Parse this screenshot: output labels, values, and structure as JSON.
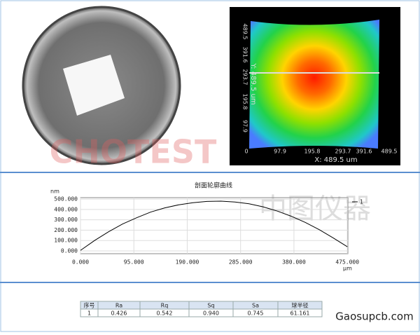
{
  "photo": {
    "watermark": "CHOTEST"
  },
  "heatmap": {
    "x_ticks": [
      "0",
      "97.9",
      "195.8",
      "293.7",
      "391.6",
      "489.5"
    ],
    "y_ticks": [
      "489.5",
      "391.6",
      "293.7",
      "195.8",
      "97.9"
    ],
    "x_label": "X: 489.5 um",
    "y_label": "Y: 489.5 um"
  },
  "chart_data": {
    "type": "line",
    "title": "剖面轮廓曲线",
    "y_label": "nm",
    "x_label": "μm",
    "watermark": "中图仪器",
    "x": [
      0,
      25,
      50,
      75,
      100,
      125,
      150,
      175,
      200,
      225,
      250,
      275,
      300,
      325,
      350,
      375,
      400,
      425,
      450,
      475
    ],
    "series": [
      {
        "name": "1",
        "color": "#000000",
        "values": [
          5,
          100,
          185,
          260,
          320,
          375,
          415,
          445,
          465,
          478,
          480,
          472,
          455,
          425,
          385,
          335,
          275,
          205,
          125,
          40
        ]
      }
    ],
    "xlim": [
      0,
      476
    ],
    "ylim": [
      -27,
      514
    ],
    "xticks": [
      {
        "value": 0,
        "label": "0.000"
      },
      {
        "value": 95,
        "label": "95.000"
      },
      {
        "value": 190,
        "label": "190.000"
      },
      {
        "value": 285,
        "label": "285.000"
      },
      {
        "value": 380,
        "label": "380.000"
      },
      {
        "value": 475,
        "label": "475.000"
      }
    ],
    "yticks": [
      {
        "value": 0,
        "label": "0.000"
      },
      {
        "value": 100,
        "label": "100.000"
      },
      {
        "value": 200,
        "label": "200.000"
      },
      {
        "value": 300,
        "label": "300.000"
      },
      {
        "value": 400,
        "label": "400.000"
      },
      {
        "value": 500,
        "label": "500.000"
      }
    ],
    "grid": true
  },
  "table": {
    "header": [
      "序号",
      "Ra",
      "Rq",
      "Sq",
      "Sa",
      "球半径"
    ],
    "rows": [
      [
        "1",
        "0.426",
        "0.542",
        "0.940",
        "0.745",
        "61.161"
      ]
    ]
  },
  "footer": "Gaosupcb.com"
}
